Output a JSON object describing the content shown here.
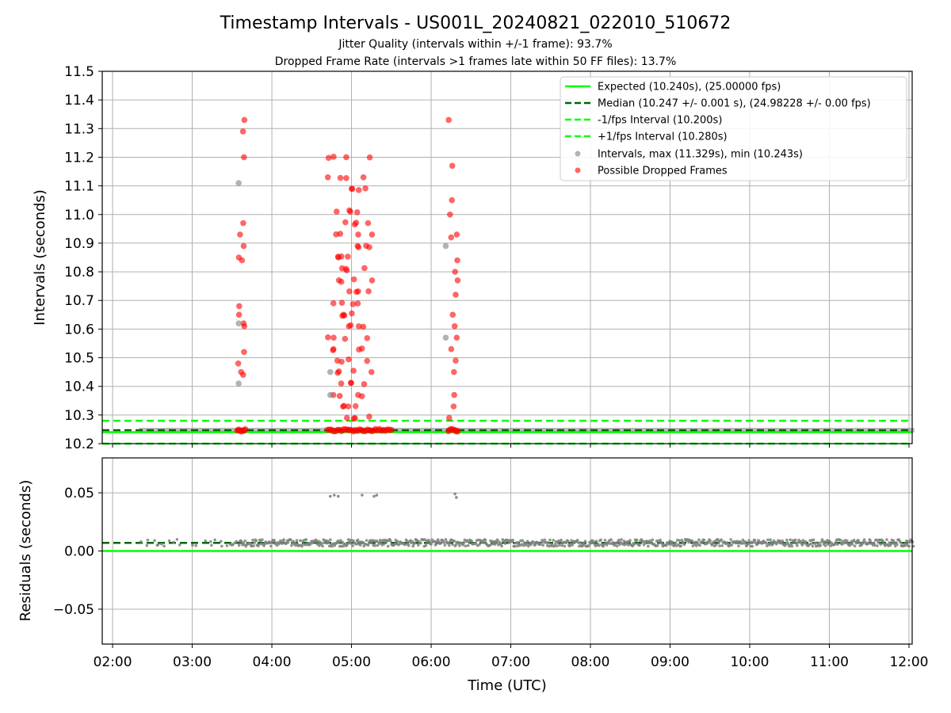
{
  "chart_data": {
    "type": "scatter",
    "title": "Timestamp Intervals - US001L_20240821_022010_510672",
    "subtitle_lines": [
      "Jitter Quality (intervals within +/-1 frame): 93.7%",
      "Dropped Frame Rate (intervals >1 frames late within 50 FF files): 13.7%"
    ],
    "xlabel": "Time (UTC)",
    "x_ticks": [
      "02:00",
      "03:00",
      "04:00",
      "05:00",
      "06:00",
      "07:00",
      "08:00",
      "09:00",
      "10:00",
      "11:00",
      "12:00"
    ],
    "x_range_hours": [
      1.87,
      12.04
    ],
    "grid": true,
    "legend_placement": "upper right",
    "colors": {
      "expected": "#00ff00",
      "median": "#006400",
      "interval_points": "#808080",
      "dropped_points": "#ff0000",
      "grid": "#b0b0b0"
    },
    "top_panel": {
      "ylabel": "Intervals (seconds)",
      "ylim": [
        10.2,
        11.5
      ],
      "y_ticks": [
        "10.2",
        "10.3",
        "10.4",
        "10.5",
        "10.6",
        "10.7",
        "10.8",
        "10.9",
        "11.0",
        "11.1",
        "11.2",
        "11.3",
        "11.4",
        "11.5"
      ],
      "lines": [
        {
          "name": "Expected (10.240s), (25.00000 fps)",
          "y": 10.24,
          "style": "solid",
          "color": "#00ff00"
        },
        {
          "name": "Median (10.247 +/- 0.001 s), (24.98228 +/- 0.00 fps)",
          "y": 10.247,
          "style": "dashed",
          "color": "#006400"
        },
        {
          "name": "-1/fps Interval (10.200s)",
          "y": 10.2,
          "style": "dashed",
          "color": "#00ff00"
        },
        {
          "name": "+1/fps Interval (10.280s)",
          "y": 10.28,
          "style": "dashed",
          "color": "#00ff00"
        }
      ],
      "scatter_series": [
        {
          "name": "Intervals, max (11.329s), min (10.243s)",
          "color": "#808080"
        },
        {
          "name": "Possible Dropped Frames",
          "color": "#ff0000"
        }
      ],
      "baseline_band": {
        "y": 10.247,
        "start_time": "02:20",
        "end_time": "12:04"
      },
      "clusters": [
        {
          "time_range": [
            "03:34",
            "03:40"
          ],
          "intervals": [
            11.33,
            11.29,
            11.2,
            10.97,
            10.93,
            10.89,
            10.85,
            10.84,
            10.68,
            10.65,
            10.62,
            10.61,
            10.52,
            10.48,
            10.45,
            10.44
          ]
        },
        {
          "time_range": [
            "04:42",
            "05:30"
          ],
          "intervals": [
            11.2,
            11.13,
            11.09,
            11.01,
            10.97,
            10.93,
            10.89,
            10.85,
            10.81,
            10.77,
            10.73,
            10.69,
            10.65,
            10.61,
            10.57,
            10.53,
            10.49,
            10.45,
            10.41,
            10.37,
            10.33,
            10.29
          ]
        },
        {
          "time_range": [
            "06:13",
            "06:20"
          ],
          "intervals": [
            11.33,
            11.17,
            11.05,
            11.0,
            10.93,
            10.92,
            10.84,
            10.8,
            10.77,
            10.72,
            10.65,
            10.61,
            10.57,
            10.53,
            10.49,
            10.45,
            10.37,
            10.33,
            10.29
          ]
        }
      ],
      "grey_outliers": [
        {
          "time": "03:35",
          "interval": 11.11
        },
        {
          "time": "03:35",
          "interval": 10.62
        },
        {
          "time": "03:35",
          "interval": 10.41
        },
        {
          "time": "04:44",
          "interval": 10.45
        },
        {
          "time": "04:44",
          "interval": 10.37
        },
        {
          "time": "06:11",
          "interval": 10.89
        },
        {
          "time": "06:11",
          "interval": 10.57
        }
      ]
    },
    "bottom_panel": {
      "ylabel": "Residuals (seconds)",
      "ylim": [
        -0.08,
        0.08
      ],
      "y_ticks": [
        "−0.05",
        "0.00",
        "0.05"
      ],
      "expected_line": {
        "y": 0.0,
        "color": "#00ff00"
      },
      "median_line": {
        "y": 0.007,
        "color": "#006400"
      },
      "residual_band": {
        "y": 0.007,
        "spread": 0.003,
        "start_time": "02:20",
        "end_time": "12:04"
      },
      "outliers": [
        {
          "time": "04:44",
          "residual": 0.047
        },
        {
          "time": "04:47",
          "residual": 0.048
        },
        {
          "time": "04:50",
          "residual": 0.047
        },
        {
          "time": "05:08",
          "residual": 0.048
        },
        {
          "time": "05:17",
          "residual": 0.047
        },
        {
          "time": "05:19",
          "residual": 0.048
        },
        {
          "time": "06:18",
          "residual": 0.049
        },
        {
          "time": "06:19",
          "residual": 0.046
        }
      ]
    }
  }
}
